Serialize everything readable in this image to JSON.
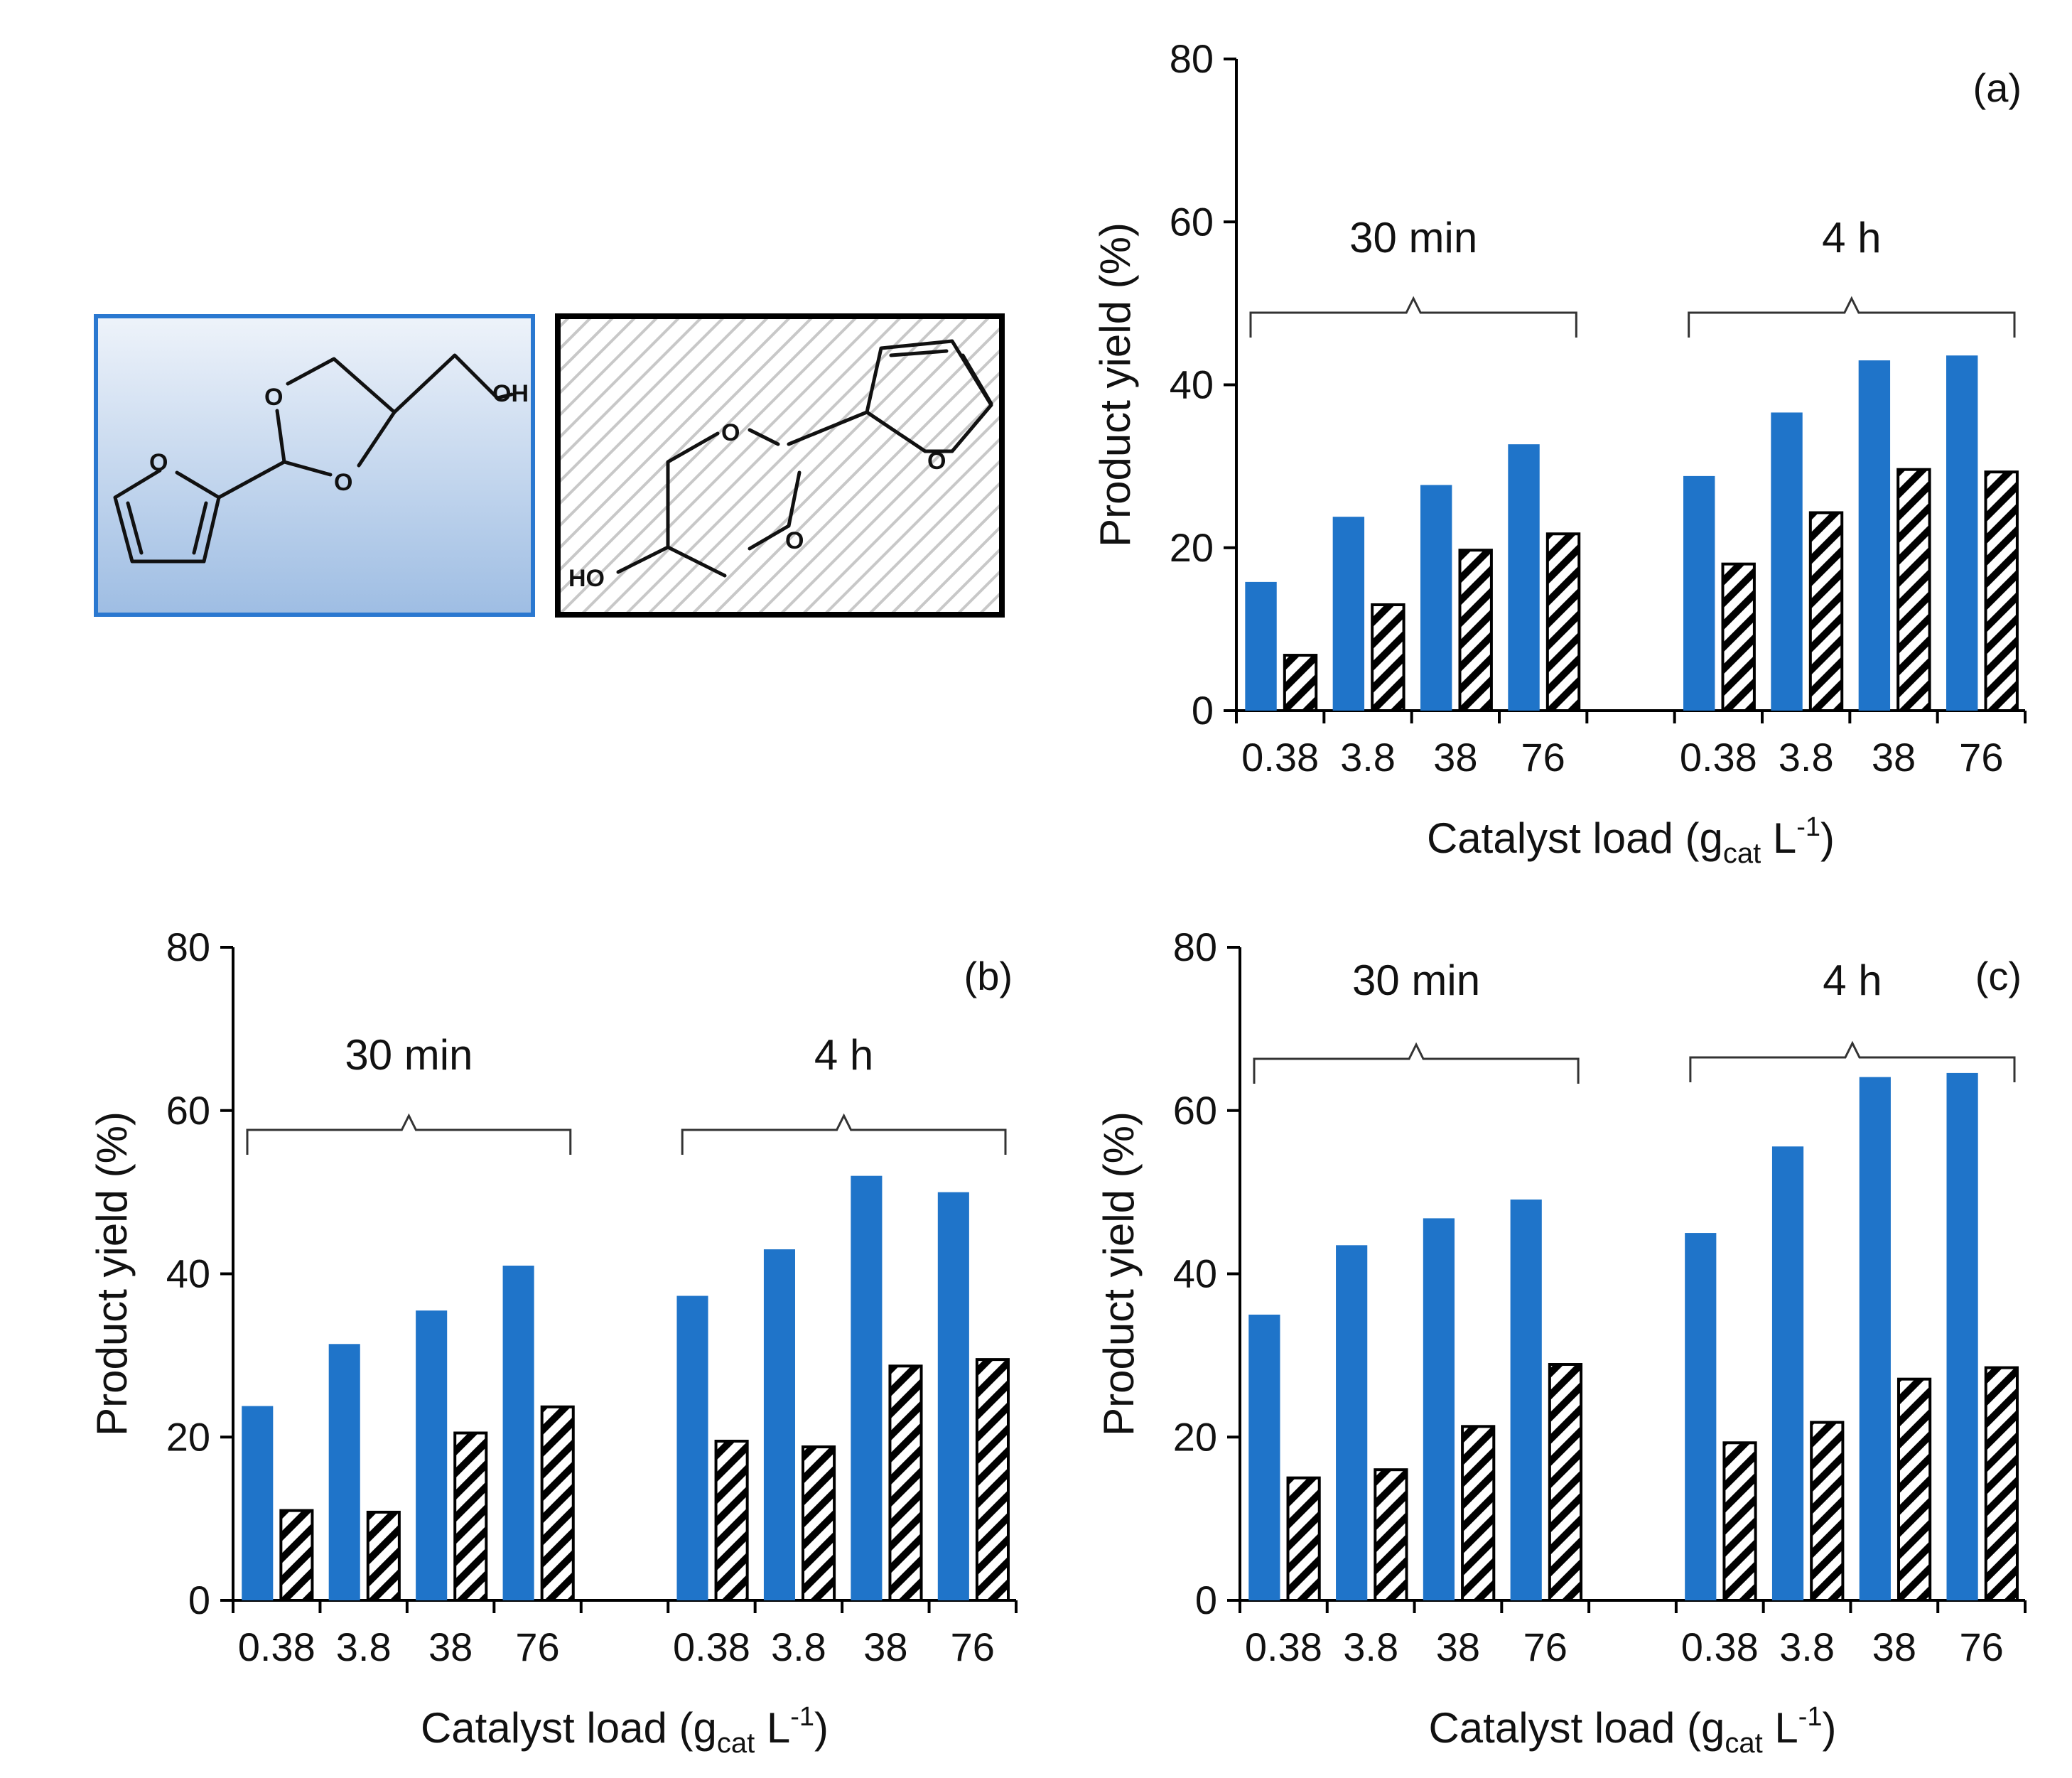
{
  "colors": {
    "series_a": "#1f74c9",
    "series_b_hatch": "#000000"
  },
  "molecules": [
    {
      "frame": "blue-box",
      "name": "five-membered acetal (dioxolane)",
      "atoms": [
        "O",
        "O",
        "O",
        "OH"
      ]
    },
    {
      "frame": "hatched-box",
      "name": "six-membered acetal (dioxane)",
      "atoms": [
        "O",
        "O",
        "O",
        "HO"
      ]
    }
  ],
  "chart_data": [
    {
      "panel": "(a)",
      "type": "bar",
      "xlabel": "Catalyst load (g",
      "xlabel_sub": "cat",
      "xlabel_after": " L",
      "xlabel_sup": "-1",
      "xlabel_close": ")",
      "ylabel": "Product yield (%)",
      "ylim": [
        0,
        80
      ],
      "yticks": [
        "0",
        "20",
        "40",
        "60",
        "80"
      ],
      "groups": [
        {
          "label": "30 min",
          "categories": [
            "0.38",
            "3.8",
            "38",
            "76"
          ]
        },
        {
          "label": "4 h",
          "categories": [
            "0.38",
            "3.8",
            "38",
            "76"
          ]
        }
      ],
      "series": [
        {
          "name": "blue",
          "style": "solid",
          "values": [
            15.8,
            23.8,
            27.7,
            32.7,
            28.8,
            36.6,
            43.0,
            43.6
          ]
        },
        {
          "name": "hatched",
          "style": "hatched",
          "values": [
            6.8,
            13.0,
            19.7,
            21.7,
            18.0,
            24.3,
            29.6,
            29.3
          ]
        }
      ]
    },
    {
      "panel": "(b)",
      "type": "bar",
      "xlabel": "Catalyst load (g",
      "xlabel_sub": "cat",
      "xlabel_after": " L",
      "xlabel_sup": "-1",
      "xlabel_close": ")",
      "ylabel": "Product yield (%)",
      "ylim": [
        0,
        80
      ],
      "yticks": [
        "0",
        "20",
        "40",
        "60",
        "80"
      ],
      "groups": [
        {
          "label": "30 min",
          "categories": [
            "0.38",
            "3.8",
            "38",
            "76"
          ]
        },
        {
          "label": "4 h",
          "categories": [
            "0.38",
            "3.8",
            "38",
            "76"
          ]
        }
      ],
      "series": [
        {
          "name": "blue",
          "style": "solid",
          "values": [
            23.8,
            31.4,
            35.5,
            41.0,
            37.3,
            43.0,
            52.0,
            50.0
          ]
        },
        {
          "name": "hatched",
          "style": "hatched",
          "values": [
            11.0,
            10.8,
            20.5,
            23.7,
            19.5,
            18.8,
            28.7,
            29.5
          ]
        }
      ]
    },
    {
      "panel": "(c)",
      "type": "bar",
      "xlabel": "Catalyst load (g",
      "xlabel_sub": "cat",
      "xlabel_after": " L",
      "xlabel_sup": "-1",
      "xlabel_close": ")",
      "ylabel": "Product yield (%)",
      "ylim": [
        0,
        80
      ],
      "yticks": [
        "0",
        "20",
        "40",
        "60",
        "80"
      ],
      "groups": [
        {
          "label": "30 min",
          "categories": [
            "0.38",
            "3.8",
            "38",
            "76"
          ]
        },
        {
          "label": "4 h",
          "categories": [
            "0.38",
            "3.8",
            "38",
            "76"
          ]
        }
      ],
      "series": [
        {
          "name": "blue",
          "style": "solid",
          "values": [
            35.0,
            43.5,
            46.8,
            49.1,
            45.0,
            55.6,
            64.1,
            64.6
          ]
        },
        {
          "name": "hatched",
          "style": "hatched",
          "values": [
            15.0,
            16.0,
            21.3,
            28.9,
            19.3,
            21.8,
            27.1,
            28.5
          ]
        }
      ]
    }
  ]
}
